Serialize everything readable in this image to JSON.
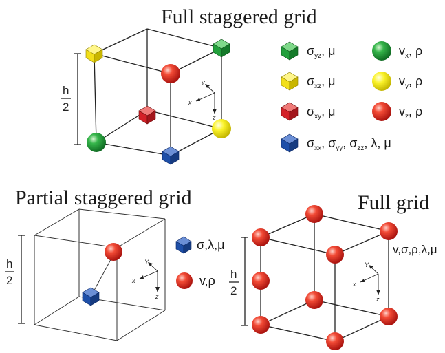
{
  "titles": {
    "full_staggered": "Full staggered grid",
    "partial_staggered": "Partial staggered grid",
    "full": "Full grid"
  },
  "h_label": {
    "top": "h",
    "bottom": "2"
  },
  "axis_labels": {
    "x": "x",
    "y": "Y",
    "z": "z"
  },
  "legend_full_staggered": [
    {
      "marker": "cube",
      "color": "#22a03c",
      "symbol": "σ",
      "sub": "yz",
      "rest": ", μ"
    },
    {
      "marker": "sphere",
      "color": "#22a03c",
      "symbol": "v",
      "sub": "x",
      "rest": ", ρ"
    },
    {
      "marker": "cube",
      "color": "#f2df1a",
      "symbol": "σ",
      "sub": "xz",
      "rest": ", μ"
    },
    {
      "marker": "sphere",
      "color": "#f2f01a",
      "symbol": "v",
      "sub": "y",
      "rest": ", ρ"
    },
    {
      "marker": "cube",
      "color": "#d42128",
      "symbol": "σ",
      "sub": "xy",
      "rest": ", μ"
    },
    {
      "marker": "sphere",
      "color": "#e5281f",
      "symbol": "v",
      "sub": "z",
      "rest": ", ρ"
    },
    {
      "marker": "cube",
      "color": "#1e4fa8",
      "text": "σ",
      "subs": [
        "xx",
        "yy",
        "zz"
      ],
      "rest": ", λ, μ"
    }
  ],
  "legend_partial": [
    {
      "marker": "cube",
      "color": "#1e4fa8",
      "text": "σ,λ,μ"
    },
    {
      "marker": "sphere",
      "color": "#e5281f",
      "text": "v,ρ"
    }
  ],
  "legend_full": {
    "text": "v,σ,ρ,λ,μ"
  },
  "colors": {
    "green": "#22a03c",
    "yellow": "#f2df1a",
    "red": "#e5281f",
    "blue": "#1e4fa8"
  }
}
